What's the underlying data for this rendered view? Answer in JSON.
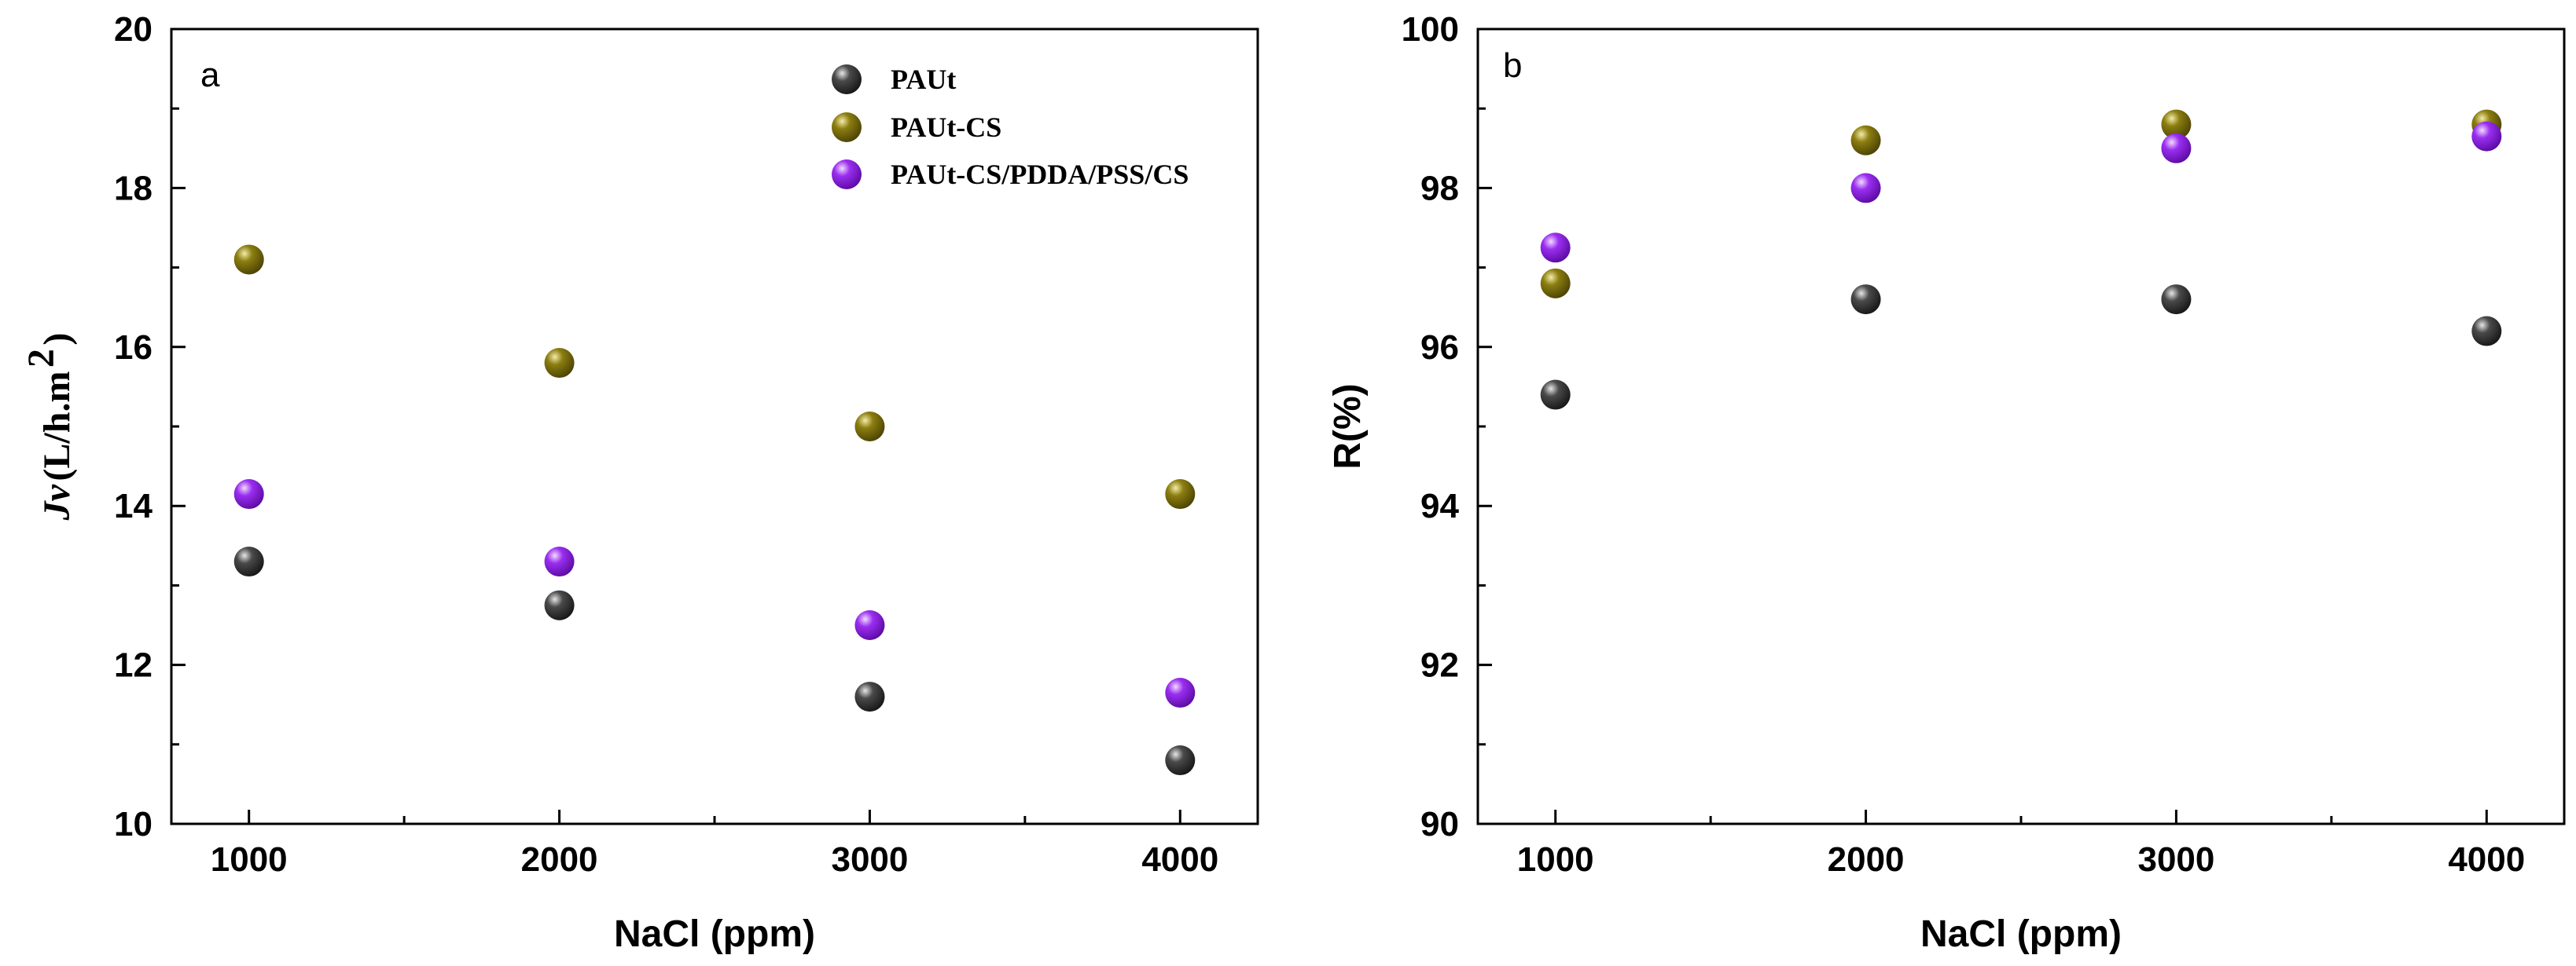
{
  "colors": {
    "PAUt": "#4a4a4a",
    "PAUt-CS": "#8c7e10",
    "PAUt-CS/PDDA/PSS/CS": "#9a2ef0"
  },
  "chart_data": [
    {
      "type": "scatter",
      "panel_label": "a",
      "xlabel": "NaCl (ppm)",
      "ylabel_main": "Jv",
      "ylabel_units": "(L/h.m",
      "ylabel_sup": "2",
      "ylabel_close": ")",
      "xlim": [
        750,
        4250
      ],
      "ylim": [
        10,
        20
      ],
      "xticks": [
        1000,
        2000,
        3000,
        4000
      ],
      "yticks": [
        10,
        12,
        14,
        16,
        18,
        20
      ],
      "legend": [
        "PAUt",
        "PAUt-CS",
        "PAUt-CS/PDDA/PSS/CS"
      ],
      "legend_position": "top-right",
      "series": [
        {
          "name": "PAUt",
          "x": [
            1000,
            2000,
            3000,
            4000
          ],
          "y": [
            13.3,
            12.75,
            11.6,
            10.8
          ]
        },
        {
          "name": "PAUt-CS",
          "x": [
            1000,
            2000,
            3000,
            4000
          ],
          "y": [
            17.1,
            15.8,
            15.0,
            14.15
          ]
        },
        {
          "name": "PAUt-CS/PDDA/PSS/CS",
          "x": [
            1000,
            2000,
            3000,
            4000
          ],
          "y": [
            14.15,
            13.3,
            12.5,
            11.65
          ]
        }
      ]
    },
    {
      "type": "scatter",
      "panel_label": "b",
      "xlabel": "NaCl (ppm)",
      "ylabel": "R(%)",
      "xlim": [
        750,
        4250
      ],
      "ylim": [
        90,
        100
      ],
      "xticks": [
        1000,
        2000,
        3000,
        4000
      ],
      "yticks": [
        90,
        92,
        94,
        96,
        98,
        100
      ],
      "series": [
        {
          "name": "PAUt",
          "x": [
            1000,
            2000,
            3000,
            4000
          ],
          "y": [
            95.4,
            96.6,
            96.6,
            96.2
          ]
        },
        {
          "name": "PAUt-CS",
          "x": [
            1000,
            2000,
            3000,
            4000
          ],
          "y": [
            96.8,
            98.6,
            98.8,
            98.8
          ]
        },
        {
          "name": "PAUt-CS/PDDA/PSS/CS",
          "x": [
            1000,
            2000,
            3000,
            4000
          ],
          "y": [
            97.25,
            98.0,
            98.5,
            98.65
          ]
        }
      ]
    }
  ]
}
